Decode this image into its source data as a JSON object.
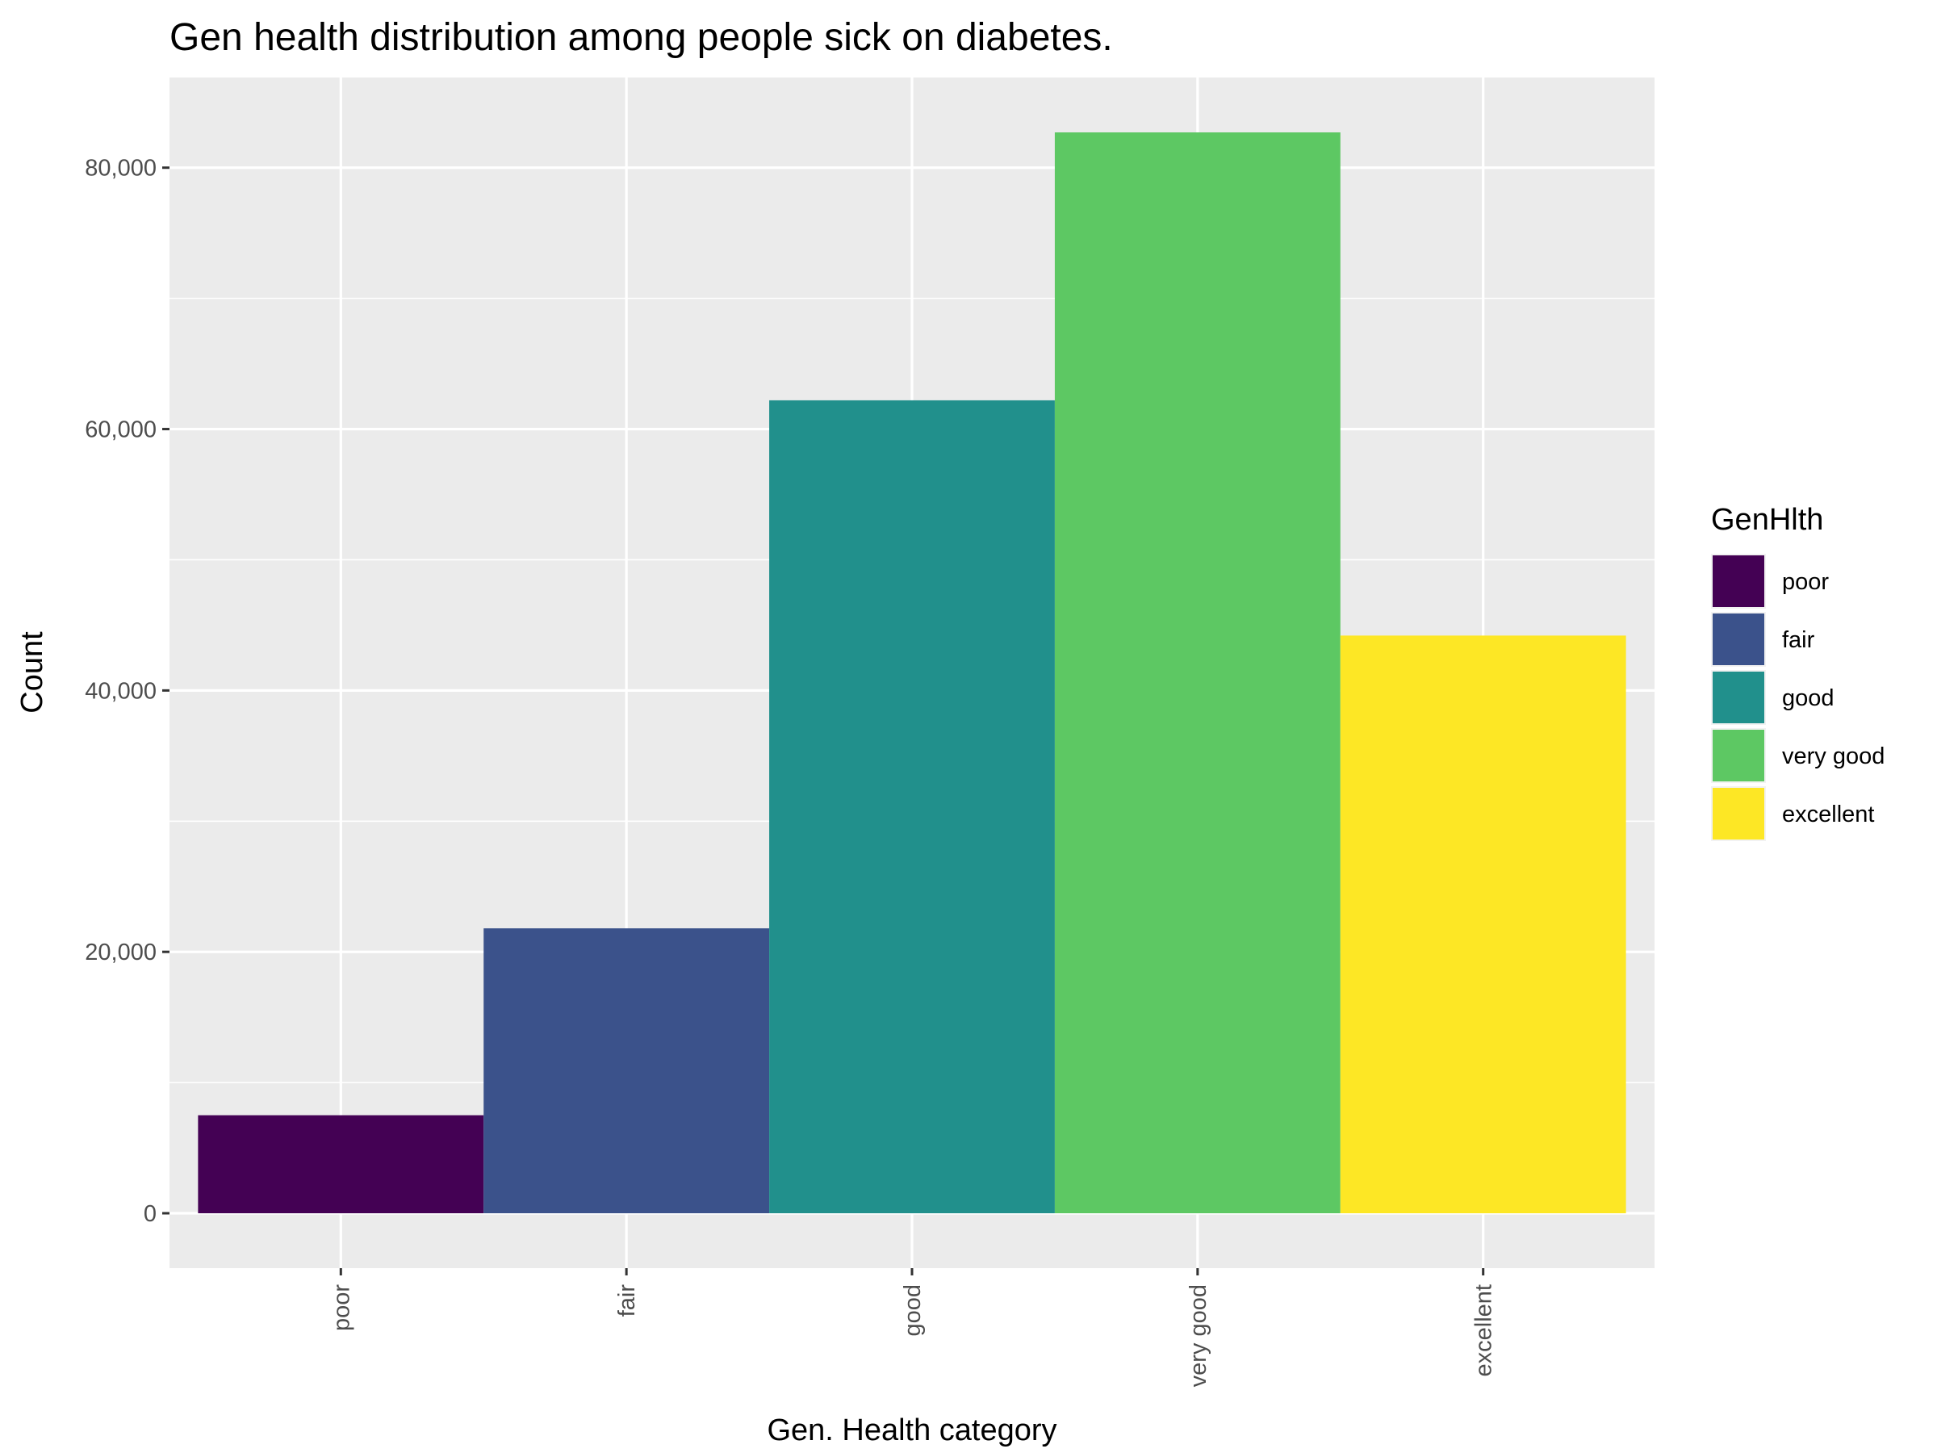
{
  "chart_data": {
    "type": "bar",
    "title": "Gen health distribution among people sick on diabetes.",
    "xlabel": "Gen. Health category",
    "ylabel": "Count",
    "categories": [
      "poor",
      "fair",
      "good",
      "very good",
      "excellent"
    ],
    "values": [
      7500,
      21800,
      62200,
      82700,
      44200
    ],
    "colors": [
      "#440154",
      "#3b528b",
      "#21908c",
      "#5dc863",
      "#fde725"
    ],
    "ylim": [
      -4200,
      86900
    ],
    "yticks": [
      0,
      20000,
      40000,
      60000,
      80000
    ],
    "ytick_labels": [
      "0",
      "20,000",
      "40,000",
      "60,000",
      "80,000"
    ],
    "grid": true,
    "background": "#ebebeb",
    "legend": {
      "title": "GenHlth",
      "placement": "right",
      "entries": [
        "poor",
        "fair",
        "good",
        "very good",
        "excellent"
      ]
    }
  }
}
